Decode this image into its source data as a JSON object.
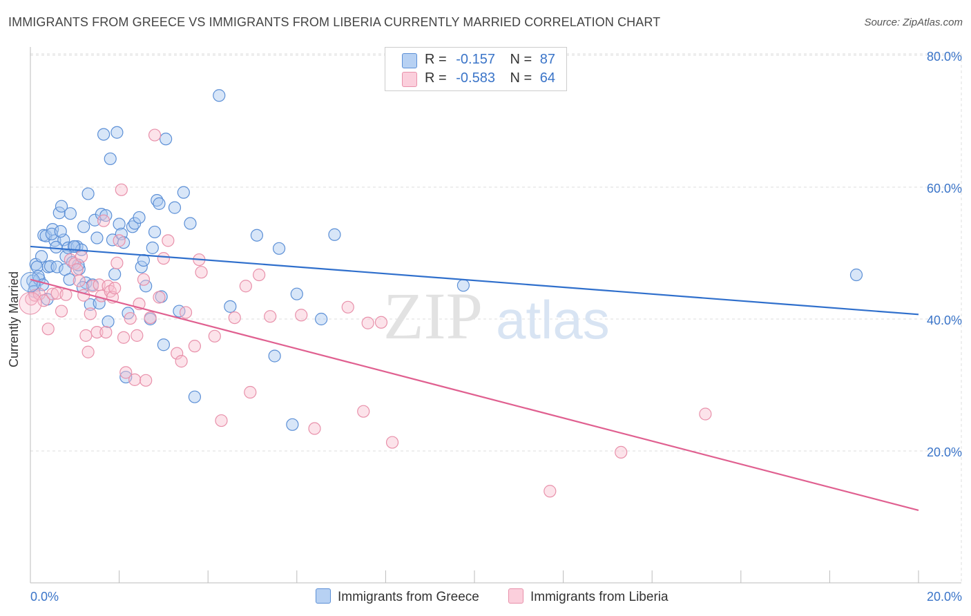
{
  "title": "IMMIGRANTS FROM GREECE VS IMMIGRANTS FROM LIBERIA CURRENTLY MARRIED CORRELATION CHART",
  "source": "Source: ZipAtlas.com",
  "watermark": {
    "zip": "ZIP",
    "atlas": "atlas"
  },
  "legend": {
    "greece": {
      "r_label": "R =",
      "r_value": "-0.157",
      "n_label": "N =",
      "n_value": "87"
    },
    "liberia": {
      "r_label": "R =",
      "r_value": "-0.583",
      "n_label": "N =",
      "n_value": "64"
    }
  },
  "colors": {
    "greece_fill": "#a8c8f0",
    "greece_stroke": "#5b8fd6",
    "greece_line": "#2f6fcc",
    "liberia_fill": "#f8c0d0",
    "liberia_stroke": "#e890aa",
    "liberia_line": "#e06090",
    "axis_text": "#3a74c8",
    "grid": "#dddddd"
  },
  "chart_data": {
    "type": "scatter",
    "title": "IMMIGRANTS FROM GREECE VS IMMIGRANTS FROM LIBERIA CURRENTLY MARRIED CORRELATION CHART",
    "xlabel": "",
    "ylabel": "Currently Married",
    "xlim": [
      0,
      20
    ],
    "ylim": [
      0,
      80
    ],
    "x_tick_labels": [
      "0.0%",
      "20.0%"
    ],
    "y_ticks": [
      20,
      40,
      60,
      80
    ],
    "y_tick_labels": [
      "20.0%",
      "40.0%",
      "60.0%",
      "80.0%"
    ],
    "series": [
      {
        "name": "Immigrants from Greece",
        "trend": [
          [
            0,
            51.0
          ],
          [
            20,
            40.7
          ]
        ],
        "points": [
          [
            0.05,
            45.8
          ],
          [
            0.1,
            45.0
          ],
          [
            0.12,
            48.3
          ],
          [
            0.15,
            47.9
          ],
          [
            0.2,
            46.0
          ],
          [
            0.25,
            49.5
          ],
          [
            0.3,
            52.7
          ],
          [
            0.35,
            52.6
          ],
          [
            0.4,
            47.9
          ],
          [
            0.45,
            48.0
          ],
          [
            0.5,
            53.6
          ],
          [
            0.55,
            51.9
          ],
          [
            0.6,
            47.9
          ],
          [
            0.65,
            56.1
          ],
          [
            0.7,
            57.1
          ],
          [
            0.75,
            52.0
          ],
          [
            0.8,
            49.5
          ],
          [
            0.85,
            50.8
          ],
          [
            0.9,
            56.0
          ],
          [
            0.95,
            48.6
          ],
          [
            1.0,
            51.0
          ],
          [
            1.05,
            51.0
          ],
          [
            1.1,
            47.6
          ],
          [
            1.15,
            50.5
          ],
          [
            1.2,
            54.0
          ],
          [
            1.25,
            45.5
          ],
          [
            1.3,
            59.0
          ],
          [
            1.35,
            42.2
          ],
          [
            1.4,
            45.2
          ],
          [
            1.45,
            55.0
          ],
          [
            1.5,
            52.3
          ],
          [
            1.55,
            42.4
          ],
          [
            1.6,
            55.9
          ],
          [
            1.65,
            68.0
          ],
          [
            1.7,
            55.7
          ],
          [
            1.75,
            39.6
          ],
          [
            1.8,
            64.3
          ],
          [
            1.85,
            52.0
          ],
          [
            1.9,
            46.8
          ],
          [
            1.95,
            68.3
          ],
          [
            2.0,
            54.4
          ],
          [
            2.05,
            52.9
          ],
          [
            2.1,
            51.6
          ],
          [
            2.15,
            31.2
          ],
          [
            2.2,
            40.9
          ],
          [
            2.3,
            54.0
          ],
          [
            2.35,
            54.5
          ],
          [
            2.45,
            55.4
          ],
          [
            2.5,
            47.9
          ],
          [
            2.55,
            48.9
          ],
          [
            2.6,
            45.0
          ],
          [
            2.7,
            40.0
          ],
          [
            2.75,
            50.8
          ],
          [
            2.8,
            53.2
          ],
          [
            2.85,
            58.0
          ],
          [
            2.9,
            57.5
          ],
          [
            2.95,
            43.4
          ],
          [
            3.0,
            36.1
          ],
          [
            3.05,
            67.3
          ],
          [
            3.25,
            56.9
          ],
          [
            3.35,
            41.2
          ],
          [
            3.45,
            59.2
          ],
          [
            3.6,
            54.5
          ],
          [
            3.7,
            28.2
          ],
          [
            4.25,
            73.9
          ],
          [
            4.5,
            41.9
          ],
          [
            5.1,
            52.7
          ],
          [
            5.5,
            34.4
          ],
          [
            5.6,
            50.7
          ],
          [
            5.9,
            24.0
          ],
          [
            6.0,
            43.8
          ],
          [
            6.55,
            40.0
          ],
          [
            6.85,
            52.8
          ],
          [
            9.75,
            45.1
          ],
          [
            18.6,
            46.7
          ],
          [
            0.08,
            44.2
          ],
          [
            0.18,
            46.5
          ],
          [
            0.28,
            45.2
          ],
          [
            0.38,
            43.0
          ],
          [
            0.48,
            52.9
          ],
          [
            0.58,
            50.9
          ],
          [
            0.68,
            53.3
          ],
          [
            0.78,
            47.5
          ],
          [
            0.88,
            46.0
          ],
          [
            0.98,
            51.0
          ],
          [
            1.08,
            48.2
          ],
          [
            1.18,
            44.8
          ]
        ]
      },
      {
        "name": "Immigrants from Liberia",
        "trend": [
          [
            0,
            46.0
          ],
          [
            20,
            11.0
          ]
        ],
        "points": [
          [
            0.02,
            43.0
          ],
          [
            0.1,
            43.6
          ],
          [
            0.2,
            43.8
          ],
          [
            0.3,
            42.8
          ],
          [
            0.4,
            38.5
          ],
          [
            0.5,
            43.8
          ],
          [
            0.6,
            43.9
          ],
          [
            0.7,
            41.2
          ],
          [
            0.8,
            43.7
          ],
          [
            0.9,
            49.0
          ],
          [
            1.0,
            48.4
          ],
          [
            1.05,
            47.5
          ],
          [
            1.1,
            45.8
          ],
          [
            1.15,
            49.5
          ],
          [
            1.2,
            43.6
          ],
          [
            1.25,
            37.5
          ],
          [
            1.3,
            35.0
          ],
          [
            1.35,
            40.8
          ],
          [
            1.4,
            45.0
          ],
          [
            1.5,
            38.0
          ],
          [
            1.55,
            45.2
          ],
          [
            1.6,
            43.5
          ],
          [
            1.65,
            54.9
          ],
          [
            1.7,
            38.0
          ],
          [
            1.75,
            45.0
          ],
          [
            1.8,
            44.2
          ],
          [
            1.85,
            43.3
          ],
          [
            1.9,
            44.7
          ],
          [
            1.95,
            48.5
          ],
          [
            2.0,
            51.9
          ],
          [
            2.05,
            59.6
          ],
          [
            2.1,
            37.2
          ],
          [
            2.15,
            31.9
          ],
          [
            2.25,
            40.1
          ],
          [
            2.35,
            30.8
          ],
          [
            2.4,
            37.5
          ],
          [
            2.45,
            42.3
          ],
          [
            2.55,
            46.0
          ],
          [
            2.6,
            30.7
          ],
          [
            2.7,
            40.2
          ],
          [
            2.8,
            67.9
          ],
          [
            2.9,
            43.3
          ],
          [
            3.0,
            49.2
          ],
          [
            3.1,
            51.9
          ],
          [
            3.3,
            34.8
          ],
          [
            3.4,
            33.6
          ],
          [
            3.5,
            41.0
          ],
          [
            3.7,
            35.9
          ],
          [
            3.8,
            49.0
          ],
          [
            3.85,
            47.1
          ],
          [
            4.15,
            37.4
          ],
          [
            4.3,
            24.6
          ],
          [
            4.6,
            40.2
          ],
          [
            4.85,
            45.0
          ],
          [
            4.95,
            28.9
          ],
          [
            5.15,
            46.7
          ],
          [
            5.4,
            40.4
          ],
          [
            6.1,
            40.6
          ],
          [
            6.4,
            23.4
          ],
          [
            7.15,
            41.8
          ],
          [
            7.5,
            26.0
          ],
          [
            7.6,
            39.4
          ],
          [
            8.15,
            21.3
          ],
          [
            11.7,
            13.9
          ]
        ]
      }
    ],
    "extra_points_liberia": [
      [
        7.9,
        39.5
      ],
      [
        15.2,
        25.6
      ],
      [
        13.3,
        19.8
      ]
    ]
  },
  "bottom_legend": {
    "greece_label": "Immigrants from Greece",
    "liberia_label": "Immigrants from Liberia"
  }
}
